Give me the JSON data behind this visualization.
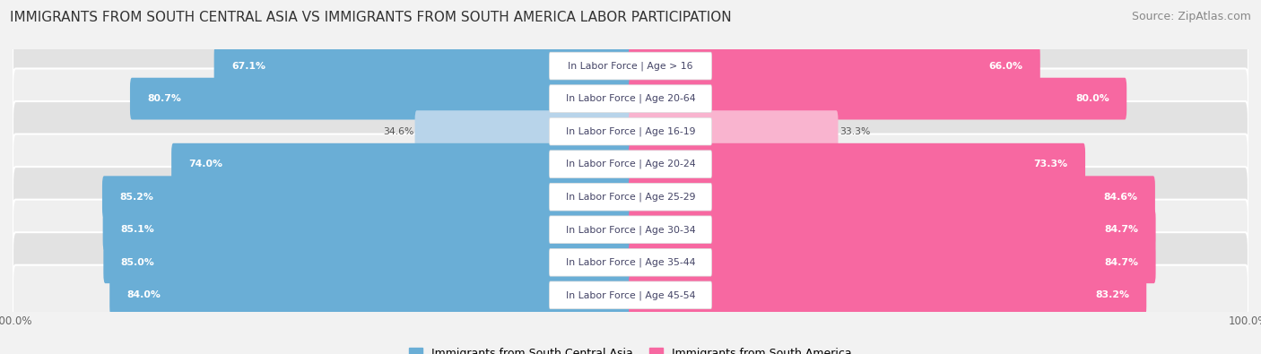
{
  "title": "IMMIGRANTS FROM SOUTH CENTRAL ASIA VS IMMIGRANTS FROM SOUTH AMERICA LABOR PARTICIPATION",
  "source": "Source: ZipAtlas.com",
  "categories": [
    "In Labor Force | Age > 16",
    "In Labor Force | Age 20-64",
    "In Labor Force | Age 16-19",
    "In Labor Force | Age 20-24",
    "In Labor Force | Age 25-29",
    "In Labor Force | Age 30-34",
    "In Labor Force | Age 35-44",
    "In Labor Force | Age 45-54"
  ],
  "left_values": [
    67.1,
    80.7,
    34.6,
    74.0,
    85.2,
    85.1,
    85.0,
    84.0
  ],
  "right_values": [
    66.0,
    80.0,
    33.3,
    73.3,
    84.6,
    84.7,
    84.7,
    83.2
  ],
  "left_color_strong": "#6aaed6",
  "left_color_light": "#b8d4ea",
  "right_color_strong": "#f768a1",
  "right_color_light": "#f9b4cf",
  "label_left": "Immigrants from South Central Asia",
  "label_right": "Immigrants from South America",
  "background_color": "#f2f2f2",
  "row_color_dark": "#e2e2e2",
  "row_color_light": "#efefef",
  "max_value": 100.0,
  "title_fontsize": 11,
  "source_fontsize": 9,
  "bar_height": 0.68,
  "threshold": 50.0
}
